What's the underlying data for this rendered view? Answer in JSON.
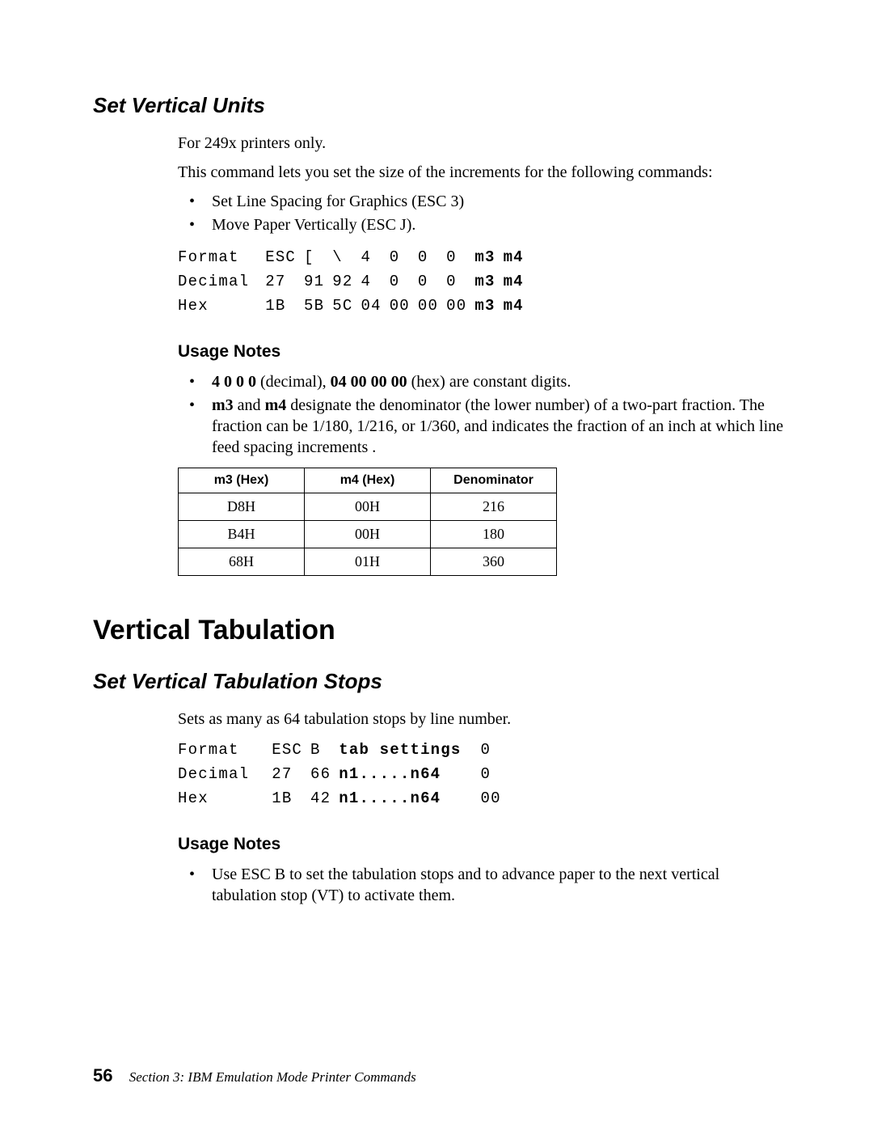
{
  "section1": {
    "heading": "Set Vertical Units",
    "p1": "For 249x printers only.",
    "p2": "This command lets you set the size of the increments for the following commands:",
    "bullets": [
      "Set Line Spacing for Graphics (ESC 3)",
      "Move Paper Vertically (ESC J)."
    ],
    "cmd": {
      "rows": [
        {
          "label": "Format",
          "c": [
            "ESC",
            "[",
            "\\",
            "4",
            "0",
            "0",
            "0",
            "m3",
            "m4"
          ],
          "boldFrom": 7
        },
        {
          "label": "Decimal",
          "c": [
            "27",
            "91",
            "92",
            "4",
            "0",
            "0",
            "0",
            "m3",
            "m4"
          ],
          "boldFrom": 7
        },
        {
          "label": "Hex",
          "c": [
            "1B",
            "5B",
            "5C",
            "04",
            "00",
            "00",
            "00",
            "m3",
            "m4"
          ],
          "boldFrom": 7
        }
      ]
    },
    "usage": {
      "heading": "Usage Notes",
      "note1": {
        "bold": "4 0 0 0",
        "tail": " (decimal), ",
        "bold2": "04 00 00 00",
        "tail2": " (hex) are constant digits."
      },
      "note2": {
        "bold": "m3",
        "mid": " and ",
        "bold2": "m4",
        "tail": " designate the denominator (the lower number) of a two-part fraction. The fraction can be 1/180, 1/216, or 1/360, and indicates the frac­tion of an inch at which line feed spacing increments ."
      }
    },
    "denom": {
      "headers": [
        "m3 (Hex)",
        "m4 (Hex)",
        "Denominator"
      ],
      "rows": [
        [
          "D8H",
          "00H",
          "216"
        ],
        [
          "B4H",
          "00H",
          "180"
        ],
        [
          "68H",
          "01H",
          "360"
        ]
      ]
    }
  },
  "section2": {
    "h1": "Vertical Tabulation",
    "h2": "Set Vertical Tabulation Stops",
    "p1": "Sets as many as 64 tabulation stops by line number.",
    "cmd": {
      "rows": [
        {
          "label": "Format",
          "c": [
            "ESC",
            "B",
            "tab settings",
            "0"
          ],
          "boldIdx": [
            2
          ]
        },
        {
          "label": "Decimal",
          "c": [
            "27",
            "66",
            "n1.....n64",
            "0"
          ],
          "boldIdx": [
            2
          ]
        },
        {
          "label": "Hex",
          "c": [
            "1B",
            "42",
            "n1.....n64",
            "00"
          ],
          "boldIdx": [
            2
          ]
        }
      ]
    },
    "usage": {
      "heading": "Usage Notes",
      "note": "Use ESC B to set the tabulation stops and to advance paper to the next ver­tical tabulation stop (VT) to activate them."
    }
  },
  "footer": {
    "page": "56",
    "section": "Section 3: IBM Emulation Mode Printer Commands"
  }
}
